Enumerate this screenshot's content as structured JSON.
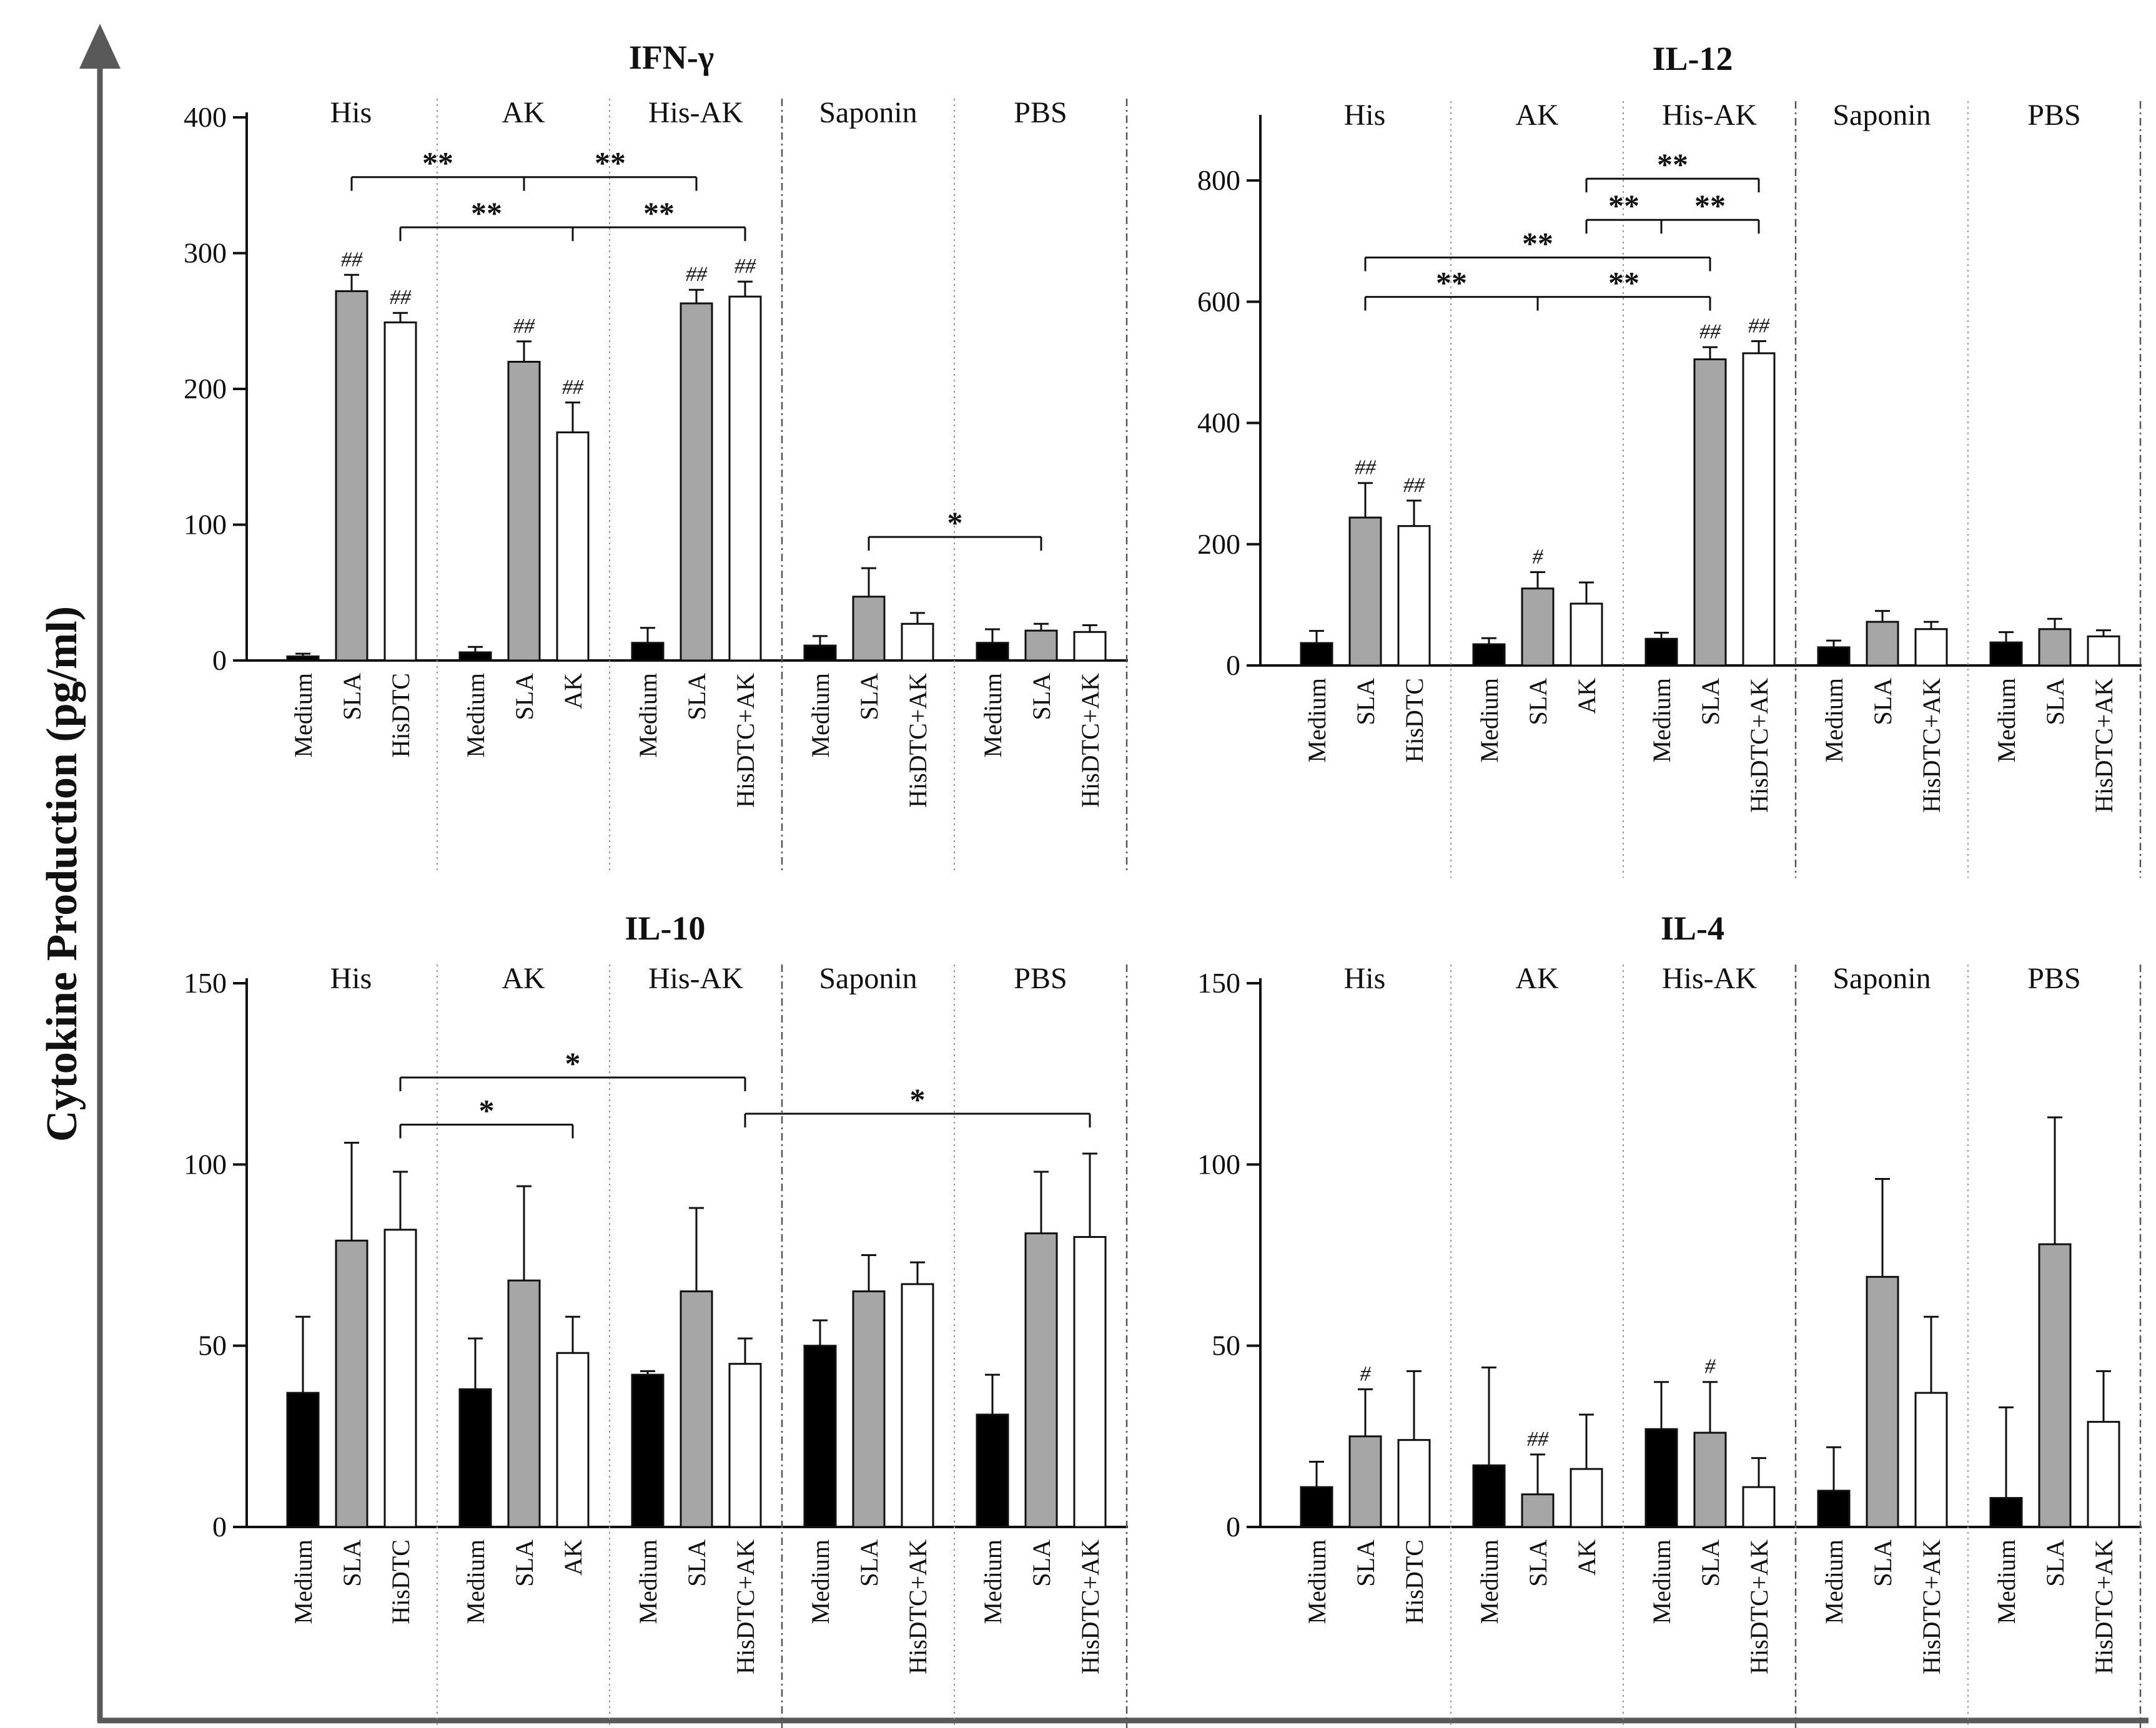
{
  "figure": {
    "y_axis_title": "Cytokine Production (pg/ml)",
    "colors": {
      "Medium": "#000000",
      "SLA": "#a6a6a6",
      "Other": "#ffffff",
      "axis": "#595959"
    },
    "group_names": [
      "His",
      "AK",
      "His-AK",
      "Saponin",
      "PBS"
    ]
  },
  "chart_data": [
    {
      "type": "bar",
      "title": "IFN-γ",
      "ylim": [
        0,
        400
      ],
      "yticks": [
        0,
        100,
        200,
        300,
        400
      ],
      "groups": [
        {
          "name": "His",
          "bars": [
            {
              "label": "Medium",
              "value": 3,
              "err": 2,
              "fill": "Medium",
              "sig": ""
            },
            {
              "label": "SLA",
              "value": 272,
              "err": 12,
              "fill": "SLA",
              "sig": "##"
            },
            {
              "label": "HisDTC",
              "value": 249,
              "err": 7,
              "fill": "Other",
              "sig": "##"
            }
          ]
        },
        {
          "name": "AK",
          "bars": [
            {
              "label": "Medium",
              "value": 6,
              "err": 4,
              "fill": "Medium",
              "sig": ""
            },
            {
              "label": "SLA",
              "value": 220,
              "err": 15,
              "fill": "SLA",
              "sig": "##"
            },
            {
              "label": "AK",
              "value": 168,
              "err": 22,
              "fill": "Other",
              "sig": "##"
            }
          ]
        },
        {
          "name": "His-AK",
          "bars": [
            {
              "label": "Medium",
              "value": 13,
              "err": 11,
              "fill": "Medium",
              "sig": ""
            },
            {
              "label": "SLA",
              "value": 263,
              "err": 10,
              "fill": "SLA",
              "sig": "##"
            },
            {
              "label": "HisDTC+AK",
              "value": 268,
              "err": 11,
              "fill": "Other",
              "sig": "##"
            }
          ]
        },
        {
          "name": "Saponin",
          "bars": [
            {
              "label": "Medium",
              "value": 11,
              "err": 7,
              "fill": "Medium",
              "sig": ""
            },
            {
              "label": "SLA",
              "value": 47,
              "err": 21,
              "fill": "SLA",
              "sig": ""
            },
            {
              "label": "HisDTC+AK",
              "value": 27,
              "err": 8,
              "fill": "Other",
              "sig": ""
            }
          ]
        },
        {
          "name": "PBS",
          "bars": [
            {
              "label": "Medium",
              "value": 13,
              "err": 10,
              "fill": "Medium",
              "sig": ""
            },
            {
              "label": "SLA",
              "value": 22,
              "err": 5,
              "fill": "SLA",
              "sig": ""
            },
            {
              "label": "HisDTC+AK",
              "value": 21,
              "err": 5,
              "fill": "Other",
              "sig": ""
            }
          ]
        }
      ],
      "brackets": [
        {
          "left": [
            0,
            1
          ],
          "right": [
            2,
            1
          ],
          "mid": [
            1,
            1
          ],
          "value": 356,
          "marks": [
            "**",
            "**"
          ]
        },
        {
          "left": [
            0,
            2
          ],
          "right": [
            2,
            2
          ],
          "mid": [
            1,
            2
          ],
          "value": 319,
          "marks": [
            "**",
            "**"
          ]
        },
        {
          "left": [
            3,
            1
          ],
          "right": [
            4,
            1
          ],
          "value": 91,
          "marks": [
            "*"
          ]
        }
      ]
    },
    {
      "type": "bar",
      "title": "IL-12",
      "ylim": [
        0,
        800
      ],
      "yticks": [
        0,
        200,
        400,
        600,
        800
      ],
      "groups": [
        {
          "name": "His",
          "bars": [
            {
              "label": "Medium",
              "value": 37,
              "err": 20,
              "fill": "Medium",
              "sig": ""
            },
            {
              "label": "SLA",
              "value": 244,
              "err": 57,
              "fill": "SLA",
              "sig": "##"
            },
            {
              "label": "HisDTC",
              "value": 230,
              "err": 42,
              "fill": "Other",
              "sig": "##"
            }
          ]
        },
        {
          "name": "AK",
          "bars": [
            {
              "label": "Medium",
              "value": 35,
              "err": 10,
              "fill": "Medium",
              "sig": ""
            },
            {
              "label": "SLA",
              "value": 127,
              "err": 27,
              "fill": "SLA",
              "sig": "#"
            },
            {
              "label": "AK",
              "value": 102,
              "err": 35,
              "fill": "Other",
              "sig": ""
            }
          ]
        },
        {
          "name": "His-AK",
          "bars": [
            {
              "label": "Medium",
              "value": 44,
              "err": 10,
              "fill": "Medium",
              "sig": ""
            },
            {
              "label": "SLA",
              "value": 505,
              "err": 20,
              "fill": "SLA",
              "sig": "##"
            },
            {
              "label": "HisDTC+AK",
              "value": 515,
              "err": 20,
              "fill": "Other",
              "sig": "##"
            }
          ]
        },
        {
          "name": "Saponin",
          "bars": [
            {
              "label": "Medium",
              "value": 30,
              "err": 11,
              "fill": "Medium",
              "sig": ""
            },
            {
              "label": "SLA",
              "value": 72,
              "err": 18,
              "fill": "SLA",
              "sig": ""
            },
            {
              "label": "HisDTC+AK",
              "value": 60,
              "err": 12,
              "fill": "Other",
              "sig": ""
            }
          ]
        },
        {
          "name": "PBS",
          "bars": [
            {
              "label": "Medium",
              "value": 38,
              "err": 17,
              "fill": "Medium",
              "sig": ""
            },
            {
              "label": "SLA",
              "value": 60,
              "err": 17,
              "fill": "SLA",
              "sig": ""
            },
            {
              "label": "HisDTC+AK",
              "value": 48,
              "err": 10,
              "fill": "Other",
              "sig": ""
            }
          ]
        }
      ],
      "brackets": [
        {
          "left": [
            1,
            2
          ],
          "right": [
            2,
            2
          ],
          "value": 803,
          "marks": [
            "**"
          ]
        },
        {
          "left": [
            1,
            2
          ],
          "right": [
            2,
            2
          ],
          "mid": [
            2,
            0
          ],
          "value": 735,
          "marks": [
            "**",
            "**"
          ]
        },
        {
          "left": [
            0,
            1
          ],
          "right": [
            2,
            1
          ],
          "value": 673,
          "marks": [
            "**"
          ]
        },
        {
          "left": [
            0,
            1
          ],
          "right": [
            2,
            1
          ],
          "mid": [
            1,
            1
          ],
          "value": 608,
          "marks": [
            "**",
            "**"
          ]
        }
      ]
    },
    {
      "type": "bar",
      "title": "IL-10",
      "ylim": [
        0,
        150
      ],
      "yticks": [
        0,
        50,
        100,
        150
      ],
      "groups": [
        {
          "name": "His",
          "bars": [
            {
              "label": "Medium",
              "value": 37,
              "err": 21,
              "fill": "Medium",
              "sig": ""
            },
            {
              "label": "SLA",
              "value": 79,
              "err": 27,
              "fill": "SLA",
              "sig": ""
            },
            {
              "label": "HisDTC",
              "value": 82,
              "err": 16,
              "fill": "Other",
              "sig": ""
            }
          ]
        },
        {
          "name": "AK",
          "bars": [
            {
              "label": "Medium",
              "value": 38,
              "err": 14,
              "fill": "Medium",
              "sig": ""
            },
            {
              "label": "SLA",
              "value": 68,
              "err": 26,
              "fill": "SLA",
              "sig": ""
            },
            {
              "label": "AK",
              "value": 48,
              "err": 10,
              "fill": "Other",
              "sig": ""
            }
          ]
        },
        {
          "name": "His-AK",
          "bars": [
            {
              "label": "Medium",
              "value": 42,
              "err": 1,
              "fill": "Medium",
              "sig": ""
            },
            {
              "label": "SLA",
              "value": 65,
              "err": 23,
              "fill": "SLA",
              "sig": ""
            },
            {
              "label": "HisDTC+AK",
              "value": 45,
              "err": 7,
              "fill": "Other",
              "sig": ""
            }
          ]
        },
        {
          "name": "Saponin",
          "bars": [
            {
              "label": "Medium",
              "value": 50,
              "err": 7,
              "fill": "Medium",
              "sig": ""
            },
            {
              "label": "SLA",
              "value": 65,
              "err": 10,
              "fill": "SLA",
              "sig": ""
            },
            {
              "label": "HisDTC+AK",
              "value": 67,
              "err": 6,
              "fill": "Other",
              "sig": ""
            }
          ]
        },
        {
          "name": "PBS",
          "bars": [
            {
              "label": "Medium",
              "value": 31,
              "err": 11,
              "fill": "Medium",
              "sig": ""
            },
            {
              "label": "SLA",
              "value": 81,
              "err": 17,
              "fill": "SLA",
              "sig": ""
            },
            {
              "label": "HisDTC+AK",
              "value": 80,
              "err": 23,
              "fill": "Other",
              "sig": ""
            }
          ]
        }
      ],
      "brackets": [
        {
          "left": [
            0,
            2
          ],
          "right": [
            2,
            2
          ],
          "value": 124,
          "marks": [
            "*"
          ]
        },
        {
          "left": [
            0,
            2
          ],
          "right": [
            1,
            2
          ],
          "value": 111,
          "marks": [
            "*"
          ]
        },
        {
          "left": [
            2,
            2
          ],
          "right": [
            4,
            2
          ],
          "value": 114,
          "marks": [
            "*"
          ]
        }
      ]
    },
    {
      "type": "bar",
      "title": "IL-4",
      "ylim": [
        0,
        150
      ],
      "yticks": [
        0,
        50,
        100,
        150
      ],
      "groups": [
        {
          "name": "His",
          "bars": [
            {
              "label": "Medium",
              "value": 11,
              "err": 7,
              "fill": "Medium",
              "sig": ""
            },
            {
              "label": "SLA",
              "value": 25,
              "err": 13,
              "fill": "SLA",
              "sig": "#"
            },
            {
              "label": "HisDTC",
              "value": 24,
              "err": 19,
              "fill": "Other",
              "sig": ""
            }
          ]
        },
        {
          "name": "AK",
          "bars": [
            {
              "label": "Medium",
              "value": 17,
              "err": 27,
              "fill": "Medium",
              "sig": ""
            },
            {
              "label": "SLA",
              "value": 9,
              "err": 11,
              "fill": "SLA",
              "sig": "##"
            },
            {
              "label": "AK",
              "value": 16,
              "err": 15,
              "fill": "Other",
              "sig": ""
            }
          ]
        },
        {
          "name": "His-AK",
          "bars": [
            {
              "label": "Medium",
              "value": 27,
              "err": 13,
              "fill": "Medium",
              "sig": ""
            },
            {
              "label": "SLA",
              "value": 26,
              "err": 14,
              "fill": "SLA",
              "sig": "#"
            },
            {
              "label": "HisDTC+AK",
              "value": 11,
              "err": 8,
              "fill": "Other",
              "sig": ""
            }
          ]
        },
        {
          "name": "Saponin",
          "bars": [
            {
              "label": "Medium",
              "value": 10,
              "err": 12,
              "fill": "Medium",
              "sig": ""
            },
            {
              "label": "SLA",
              "value": 69,
              "err": 27,
              "fill": "SLA",
              "sig": ""
            },
            {
              "label": "HisDTC+AK",
              "value": 37,
              "err": 21,
              "fill": "Other",
              "sig": ""
            }
          ]
        },
        {
          "name": "PBS",
          "bars": [
            {
              "label": "Medium",
              "value": 8,
              "err": 25,
              "fill": "Medium",
              "sig": ""
            },
            {
              "label": "SLA",
              "value": 78,
              "err": 35,
              "fill": "SLA",
              "sig": ""
            },
            {
              "label": "HisDTC+AK",
              "value": 29,
              "err": 14,
              "fill": "Other",
              "sig": ""
            }
          ]
        }
      ],
      "brackets": []
    }
  ]
}
